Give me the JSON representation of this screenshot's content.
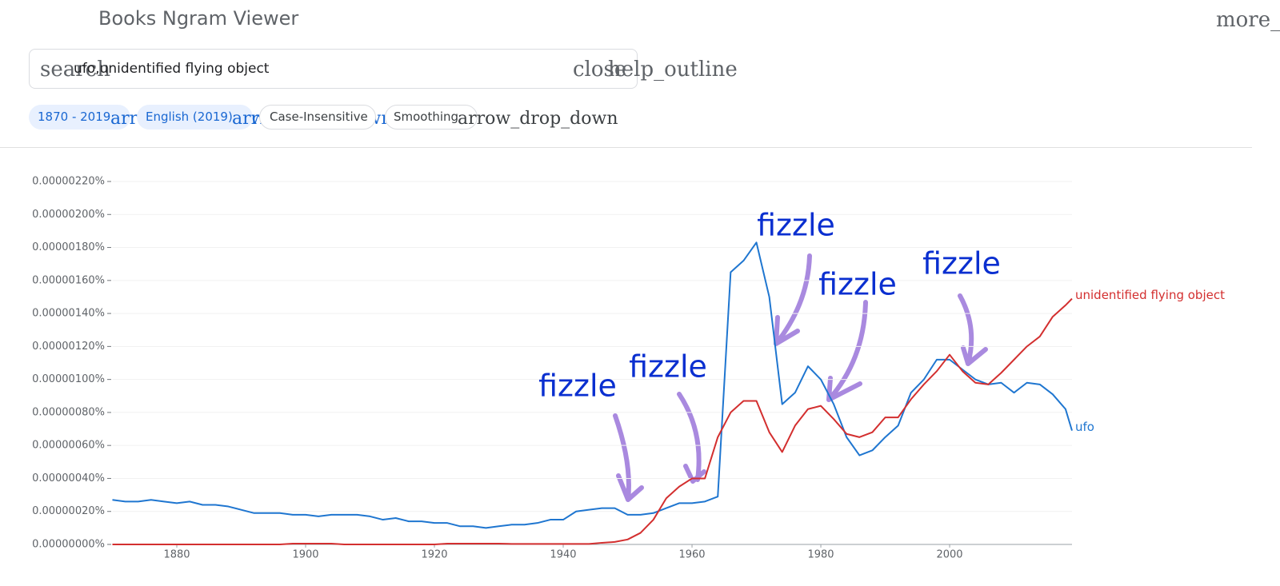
{
  "header": {
    "title": "Books Ngram Viewer",
    "menu_icon": "more_vert"
  },
  "search": {
    "icon": "search",
    "query": "ufo,unidentified flying object",
    "clear_icon": "close",
    "help_icon": "help_outline"
  },
  "chips": [
    {
      "label": "1870 - 2019",
      "icon": "arrow_drop_down"
    },
    {
      "label": "English (2019)",
      "icon": "arrow_drop_down"
    },
    {
      "label": "Case-Insensitive"
    },
    {
      "label": "Smoothing",
      "icon": "arrow_drop_down"
    }
  ],
  "chart_data": {
    "type": "line",
    "x": [
      1870,
      1872,
      1874,
      1876,
      1878,
      1880,
      1882,
      1884,
      1886,
      1888,
      1890,
      1892,
      1894,
      1896,
      1898,
      1900,
      1902,
      1904,
      1906,
      1908,
      1910,
      1912,
      1914,
      1916,
      1918,
      1920,
      1922,
      1924,
      1926,
      1928,
      1930,
      1932,
      1934,
      1936,
      1938,
      1940,
      1942,
      1944,
      1946,
      1948,
      1950,
      1952,
      1954,
      1956,
      1958,
      1960,
      1962,
      1964,
      1966,
      1968,
      1970,
      1972,
      1974,
      1976,
      1978,
      1980,
      1982,
      1984,
      1986,
      1988,
      1990,
      1992,
      1994,
      1996,
      1998,
      2000,
      2002,
      2004,
      2006,
      2008,
      2010,
      2012,
      2014,
      2016,
      2018,
      2019
    ],
    "series": [
      {
        "name": "ufo",
        "color": "#1f76d0",
        "values": [
          2.7e-07,
          2.6e-07,
          2.6e-07,
          2.7e-07,
          2.6e-07,
          2.5e-07,
          2.6e-07,
          2.4e-07,
          2.4e-07,
          2.3e-07,
          2.1e-07,
          1.9e-07,
          1.9e-07,
          1.9e-07,
          1.8e-07,
          1.8e-07,
          1.7e-07,
          1.8e-07,
          1.8e-07,
          1.8e-07,
          1.7e-07,
          1.5e-07,
          1.6e-07,
          1.4e-07,
          1.4e-07,
          1.3e-07,
          1.3e-07,
          1.1e-07,
          1.1e-07,
          1e-07,
          1.1e-07,
          1.2e-07,
          1.2e-07,
          1.3e-07,
          1.5e-07,
          1.5e-07,
          2e-07,
          2.1e-07,
          2.2e-07,
          2.2e-07,
          1.8e-07,
          1.8e-07,
          1.9e-07,
          2.2e-07,
          2.5e-07,
          2.5e-07,
          2.6e-07,
          2.9e-07,
          1.65e-06,
          1.72e-06,
          1.83e-06,
          1.5e-06,
          8.5e-07,
          9.2e-07,
          1.08e-06,
          1e-06,
          8.5e-07,
          6.5e-07,
          5.4e-07,
          5.7e-07,
          6.5e-07,
          7.2e-07,
          9.2e-07,
          1e-06,
          1.12e-06,
          1.12e-06,
          1.06e-06,
          1e-06,
          9.7e-07,
          9.8e-07,
          9.2e-07,
          9.8e-07,
          9.7e-07,
          9.1e-07,
          8.2e-07,
          6.9e-07
        ]
      },
      {
        "name": "unidentified flying object",
        "color": "#d32f2f",
        "values": [
          0,
          0,
          0,
          0,
          0,
          0,
          0,
          0,
          0,
          0,
          0,
          0,
          0,
          0,
          5e-09,
          5e-09,
          5e-09,
          5e-09,
          0,
          0,
          0,
          0,
          0,
          0,
          0,
          0,
          5e-09,
          5e-09,
          5e-09,
          5e-09,
          5e-09,
          3e-09,
          3e-09,
          3e-09,
          3e-09,
          3e-09,
          3e-09,
          3e-09,
          1e-08,
          1.5e-08,
          3e-08,
          7e-08,
          1.5e-07,
          2.8e-07,
          3.5e-07,
          4e-07,
          4e-07,
          6.5e-07,
          8e-07,
          8.7e-07,
          8.7e-07,
          6.8e-07,
          5.6e-07,
          7.2e-07,
          8.2e-07,
          8.4e-07,
          7.6e-07,
          6.7e-07,
          6.5e-07,
          6.8e-07,
          7.7e-07,
          7.7e-07,
          8.8e-07,
          9.7e-07,
          1.05e-06,
          1.15e-06,
          1.05e-06,
          9.8e-07,
          9.7e-07,
          1.04e-06,
          1.12e-06,
          1.2e-06,
          1.26e-06,
          1.38e-06,
          1.45e-06,
          1.49e-06
        ]
      }
    ],
    "xlim": [
      1870,
      2019
    ],
    "xticks": [
      1880,
      1900,
      1920,
      1940,
      1960,
      1980,
      2000
    ],
    "ylim": [
      0,
      2.2e-06
    ],
    "yticks": [
      {
        "value": 0,
        "label": "0.00000000%"
      },
      {
        "value": 2e-07,
        "label": "0.00000020%"
      },
      {
        "value": 4e-07,
        "label": "0.00000040%"
      },
      {
        "value": 6e-07,
        "label": "0.00000060%"
      },
      {
        "value": 8e-07,
        "label": "0.00000080%"
      },
      {
        "value": 1e-06,
        "label": "0.00000100%"
      },
      {
        "value": 1.2e-06,
        "label": "0.00000120%"
      },
      {
        "value": 1.4e-06,
        "label": "0.00000140%"
      },
      {
        "value": 1.6e-06,
        "label": "0.00000160%"
      },
      {
        "value": 1.8e-06,
        "label": "0.00000180%"
      },
      {
        "value": 2e-06,
        "label": "0.00000200%"
      },
      {
        "value": 2.2e-06,
        "label": "0.00000220%"
      }
    ],
    "grid": true,
    "annotations": [
      "fizzle",
      "fizzle",
      "fizzle",
      "fizzle",
      "fizzle"
    ]
  }
}
